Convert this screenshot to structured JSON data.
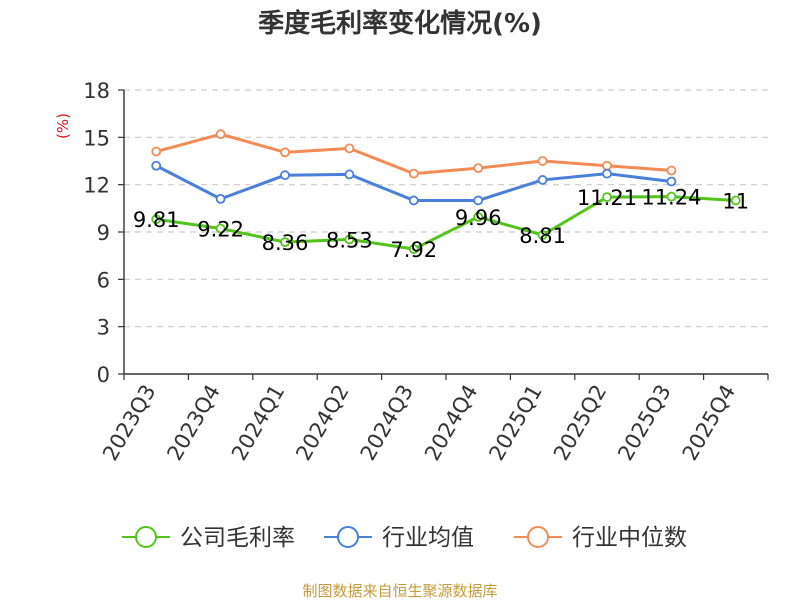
{
  "chart_data": {
    "type": "line",
    "title": "季度毛利率变化情况(%)",
    "ylabel": "(%)",
    "xlabel": "",
    "categories": [
      "2023Q3",
      "2023Q4",
      "2024Q1",
      "2024Q2",
      "2024Q3",
      "2024Q4",
      "2025Q1",
      "2025Q2",
      "2025Q3",
      "2025Q4"
    ],
    "ylim": [
      0,
      18
    ],
    "yticks": [
      0,
      3,
      6,
      9,
      12,
      15,
      18
    ],
    "grid": true,
    "legend_position": "bottom",
    "series": [
      {
        "name": "公司毛利率",
        "color": "#52c41a",
        "show_labels": true,
        "values": [
          9.81,
          9.22,
          8.36,
          8.53,
          7.92,
          9.96,
          8.81,
          11.21,
          11.24,
          11
        ],
        "labels": [
          "9.81",
          "9.22",
          "8.36",
          "8.53",
          "7.92",
          "9.96",
          "8.81",
          "11.21",
          "11.24",
          "11"
        ]
      },
      {
        "name": "行业均值",
        "color": "#4a7fdc",
        "show_labels": false,
        "values": [
          13.2,
          11.1,
          12.6,
          12.65,
          11.0,
          11.0,
          12.3,
          12.7,
          12.2,
          null
        ]
      },
      {
        "name": "行业中位数",
        "color": "#f38b56",
        "show_labels": false,
        "values": [
          14.1,
          15.2,
          14.05,
          14.3,
          12.7,
          13.05,
          13.5,
          13.2,
          12.9,
          null
        ]
      }
    ]
  },
  "source_text": "制图数据来自恒生聚源数据库"
}
